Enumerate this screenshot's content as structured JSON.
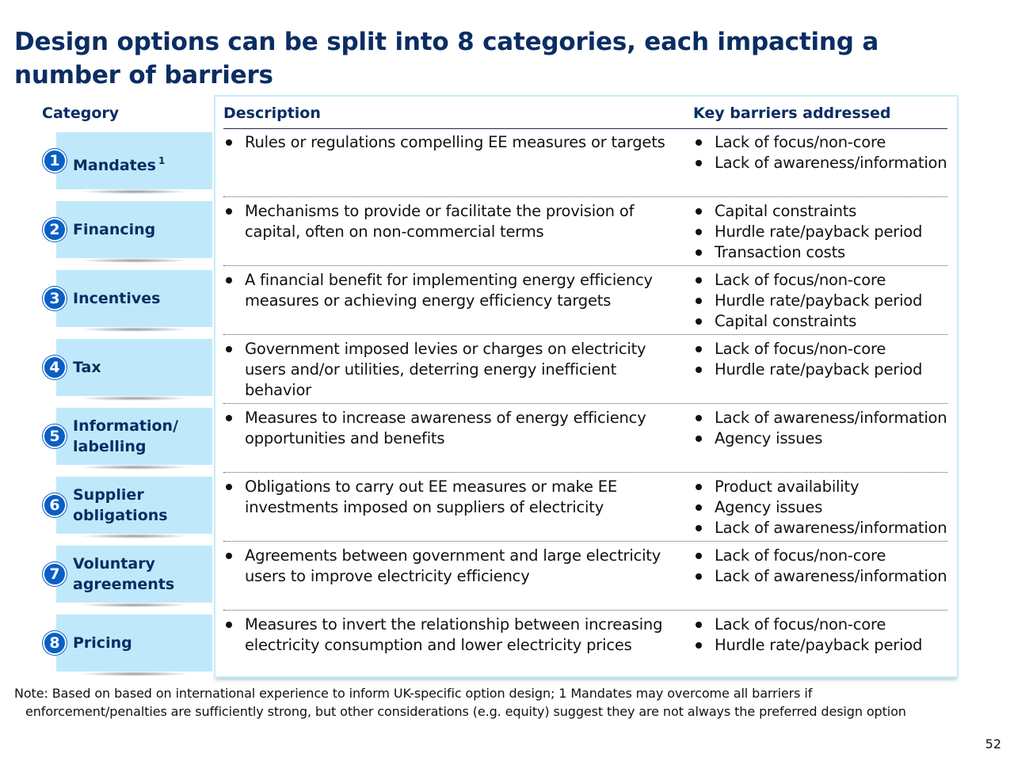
{
  "title": "Design options can be split into 8 categories, each impacting a number of barriers",
  "headers": {
    "category": "Category",
    "description": "Description",
    "barriers": "Key barriers addressed"
  },
  "rows": [
    {
      "num": "1",
      "label": "Mandates",
      "sup": "1",
      "description": [
        "Rules or regulations compelling EE measures or targets"
      ],
      "barriers": [
        "Lack of focus/non-core",
        "Lack of awareness/information"
      ]
    },
    {
      "num": "2",
      "label": "Financing",
      "sup": "",
      "description": [
        "Mechanisms to provide or facilitate the provision of capital, often on non-commercial terms"
      ],
      "barriers": [
        "Capital constraints",
        "Hurdle rate/payback period",
        "Transaction costs"
      ]
    },
    {
      "num": "3",
      "label": "Incentives",
      "sup": "",
      "description": [
        "A financial benefit for implementing energy efficiency measures or achieving energy efficiency targets"
      ],
      "barriers": [
        "Lack of focus/non-core",
        "Hurdle rate/payback period",
        "Capital constraints"
      ]
    },
    {
      "num": "4",
      "label": "Tax",
      "sup": "",
      "description": [
        "Government imposed levies or charges on electricity users and/or utilities, deterring energy inefficient behavior"
      ],
      "barriers": [
        "Lack of focus/non-core",
        "Hurdle rate/payback period"
      ]
    },
    {
      "num": "5",
      "label": "Information/ labelling",
      "sup": "",
      "description": [
        "Measures to increase awareness of energy efficiency opportunities and benefits"
      ],
      "barriers": [
        "Lack of awareness/information",
        "Agency issues"
      ]
    },
    {
      "num": "6",
      "label": "Supplier obligations",
      "sup": "",
      "description": [
        "Obligations to carry out EE measures or make EE investments imposed on suppliers of electricity"
      ],
      "barriers": [
        "Product availability",
        "Agency issues",
        "Lack of awareness/information"
      ]
    },
    {
      "num": "7",
      "label": "Voluntary agreements",
      "sup": "",
      "description": [
        "Agreements between government and large electricity users to improve electricity efficiency"
      ],
      "barriers": [
        "Lack of focus/non-core",
        "Lack of awareness/information"
      ]
    },
    {
      "num": "8",
      "label": "Pricing",
      "sup": "",
      "description": [
        "Measures to invert the relationship between increasing electricity consumption and lower electricity prices"
      ],
      "barriers": [
        "Lack of focus/non-core",
        "Hurdle rate/payback period"
      ]
    }
  ],
  "note": {
    "line1": "Note: Based on based on international experience to inform UK-specific option design; 1 Mandates may overcome all barriers if",
    "line2": "enforcement/penalties are sufficiently strong, but other considerations (e.g. equity) suggest they are not always the preferred design option"
  },
  "page_number": "52"
}
